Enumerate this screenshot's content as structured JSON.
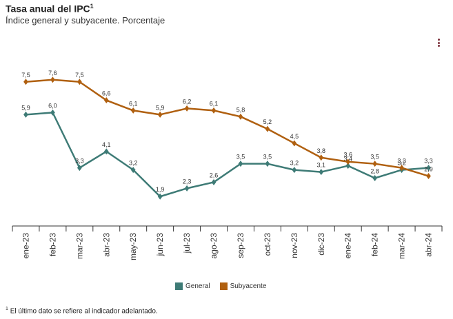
{
  "title": {
    "text": "Tasa anual del IPC",
    "sup": "1"
  },
  "subtitle": "Índice general y subyacente. Porcentaje",
  "menu_icon": "more-vertical-icon",
  "footnote": {
    "sup": "1",
    "text": "El último dato se refiere al indicador adelantado."
  },
  "colors": {
    "general": "#3e7b76",
    "subyacente": "#b06010",
    "axis": "#333333",
    "menu": "#7a2e3a"
  },
  "chart_data": {
    "type": "line",
    "title": "Tasa anual del IPC",
    "subtitle": "Índice general y subyacente. Porcentaje",
    "categories": [
      "ene-23",
      "feb-23",
      "mar-23",
      "abr-23",
      "may-23",
      "jun-23",
      "jul-23",
      "ago-23",
      "sep-23",
      "oct-23",
      "nov-23",
      "dic-23",
      "ene-24",
      "feb-24",
      "mar-24",
      "abr-24"
    ],
    "series": [
      {
        "name": "General",
        "color": "#3e7b76",
        "values": [
          5.9,
          6.0,
          3.3,
          4.1,
          3.2,
          1.9,
          2.3,
          2.6,
          3.5,
          3.5,
          3.2,
          3.1,
          3.4,
          2.8,
          3.2,
          3.3
        ],
        "labels": [
          "5,9",
          "6,0",
          "3,3",
          "4,1",
          "3,2",
          "1,9",
          "2,3",
          "2,6",
          "3,5",
          "3,5",
          "3,2",
          "3,1",
          "3,4",
          "2,8",
          "3,2",
          "3,3"
        ]
      },
      {
        "name": "Subyacente",
        "color": "#b06010",
        "values": [
          7.5,
          7.6,
          7.5,
          6.6,
          6.1,
          5.9,
          6.2,
          6.1,
          5.8,
          5.2,
          4.5,
          3.8,
          3.6,
          3.5,
          3.3,
          2.9
        ],
        "labels": [
          "7,5",
          "7,6",
          "7,5",
          "6,6",
          "6,1",
          "5,9",
          "6,2",
          "6,1",
          "5,8",
          "5,2",
          "4,5",
          "3,8",
          "3,6",
          "3,5",
          "3,3",
          "2,9"
        ]
      }
    ],
    "ylim": [
      1.0,
      8.3
    ],
    "grid": false,
    "legend_position": "bottom-center",
    "xlabel": "",
    "ylabel": ""
  }
}
